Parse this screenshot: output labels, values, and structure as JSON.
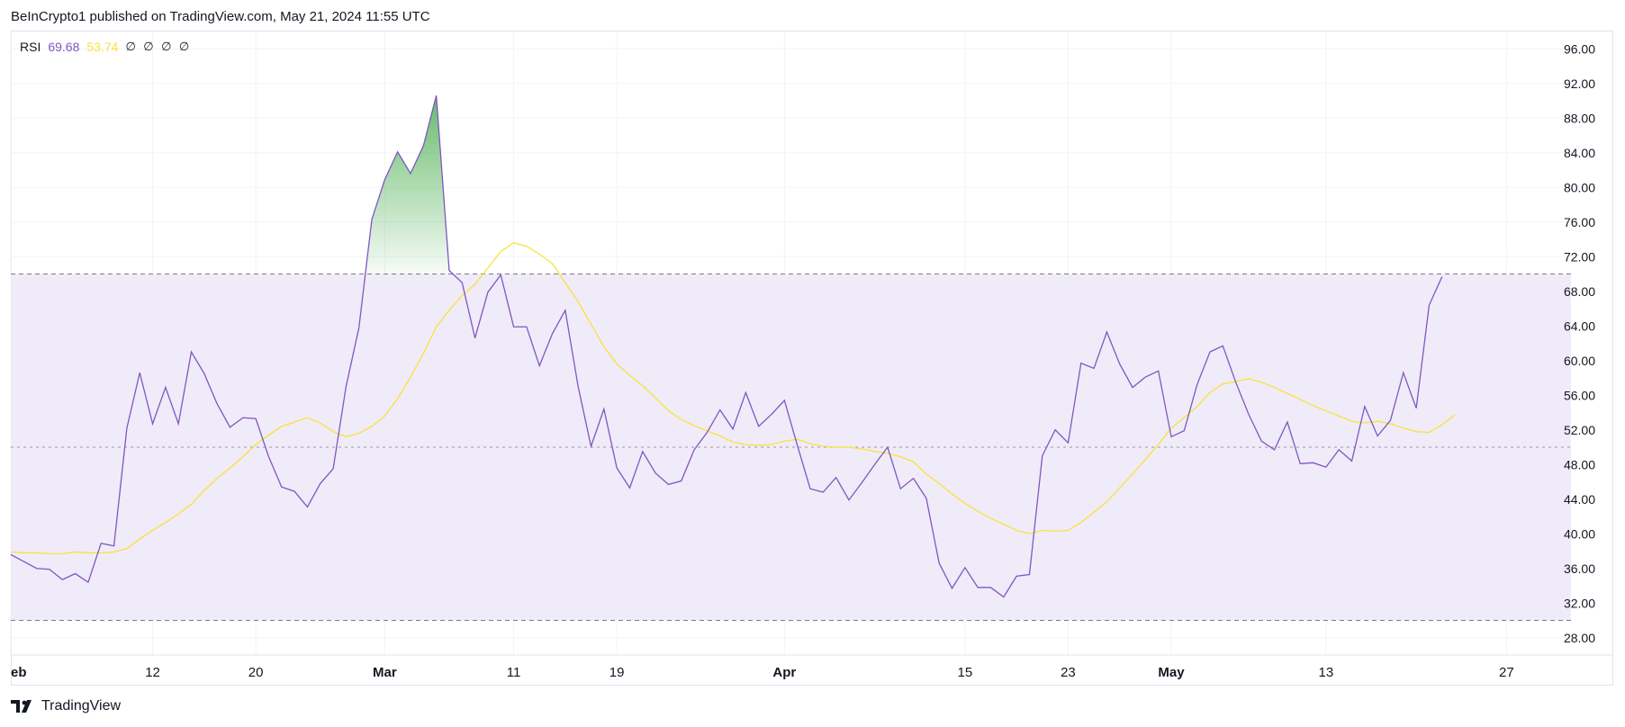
{
  "header": {
    "publisher_line": "BeInCrypto1 published on TradingView.com, May 21, 2024 11:55 UTC"
  },
  "legend": {
    "name": "RSI",
    "rsi_value": "69.68",
    "ma_value": "53.74",
    "na_values": [
      "∅",
      "∅",
      "∅",
      "∅"
    ]
  },
  "footer": {
    "brand": "TradingView",
    "logo_icon": "tradingview-logo-icon"
  },
  "colors": {
    "rsi": "#7e57c2",
    "ma": "#f9e23c",
    "band": "#f0ebf8",
    "overbought_fill": "#4caf50"
  },
  "chart_data": {
    "type": "line",
    "ylim": [
      26,
      98
    ],
    "y_ticks": [
      "96.00",
      "92.00",
      "88.00",
      "84.00",
      "80.00",
      "76.00",
      "72.00",
      "68.00",
      "64.00",
      "60.00",
      "56.00",
      "52.00",
      "48.00",
      "44.00",
      "40.00",
      "36.00",
      "32.00",
      "28.00"
    ],
    "y_tick_values": [
      96,
      92,
      88,
      84,
      80,
      76,
      72,
      68,
      64,
      60,
      56,
      52,
      48,
      44,
      40,
      36,
      32,
      28
    ],
    "x_ticks": [
      {
        "label": "eb",
        "bold": true,
        "idx": 0
      },
      {
        "label": "12",
        "bold": false,
        "idx": 11
      },
      {
        "label": "20",
        "bold": false,
        "idx": 19
      },
      {
        "label": "Mar",
        "bold": true,
        "idx": 29
      },
      {
        "label": "11",
        "bold": false,
        "idx": 39
      },
      {
        "label": "19",
        "bold": false,
        "idx": 47
      },
      {
        "label": "Apr",
        "bold": true,
        "idx": 60
      },
      {
        "label": "15",
        "bold": false,
        "idx": 74
      },
      {
        "label": "23",
        "bold": false,
        "idx": 82
      },
      {
        "label": "May",
        "bold": true,
        "idx": 90
      },
      {
        "label": "13",
        "bold": false,
        "idx": 102
      },
      {
        "label": "27",
        "bold": false,
        "idx": 116
      }
    ],
    "x_index_max": 121,
    "bands": {
      "upper": 70,
      "middle": 50,
      "lower": 30
    },
    "series": [
      {
        "values": [
          37.6,
          36.8,
          36,
          35.9,
          34.7,
          35.4,
          34.4,
          38.9,
          38.6,
          52.2,
          58.6,
          52.7,
          56.9,
          52.7,
          61,
          58.5,
          55,
          52.3,
          53.4,
          53.3,
          48.9,
          45.4,
          44.9,
          43.1,
          45.8,
          47.5,
          57,
          63.8,
          76.3,
          80.9,
          84.1,
          81.6,
          84.8,
          90.6,
          70.4,
          69,
          62.6,
          67.9,
          69.9,
          63.9,
          63.9,
          59.4,
          63.1,
          65.8,
          57,
          50.1,
          54.4,
          47.6,
          45.3,
          49.5,
          47,
          45.7,
          46.1,
          49.7,
          51.7,
          54.3,
          52.1,
          56.3,
          52.4,
          53.8,
          55.4,
          50.2,
          45.2,
          44.8,
          46.5,
          43.9,
          45.9,
          48,
          50,
          45.2,
          46.4,
          44.1,
          36.6,
          33.7,
          36.1,
          33.8,
          33.8,
          32.7,
          35.1,
          35.3,
          49,
          52,
          50.5,
          59.7,
          59.1,
          63.3,
          59.6,
          56.9,
          58.1,
          58.8,
          51.2,
          51.9,
          57.2,
          61,
          61.7,
          57.5,
          53.8,
          50.7,
          49.7,
          52.9,
          48.1,
          48.2,
          47.7,
          49.7,
          48.4,
          54.7,
          51.3,
          53.1,
          58.6,
          54.5,
          66.4,
          69.68
        ]
      },
      {
        "values": [
          37.9,
          37.8,
          37.8,
          37.7,
          37.7,
          37.9,
          37.8,
          37.8,
          37.9,
          38.3,
          39.4,
          40.4,
          41.3,
          42.3,
          43.4,
          45,
          46.4,
          47.6,
          48.9,
          50.3,
          51.4,
          52.4,
          52.9,
          53.4,
          52.8,
          51.8,
          51.2,
          51.6,
          52.4,
          53.6,
          55.6,
          58.1,
          60.8,
          63.9,
          65.8,
          67.5,
          68.8,
          70.7,
          72.6,
          73.6,
          73.2,
          72.3,
          71.2,
          69,
          66.8,
          64.2,
          61.6,
          59.6,
          58.3,
          57.1,
          55.7,
          54.2,
          53.2,
          52.5,
          51.9,
          51.3,
          50.6,
          50.3,
          50.2,
          50.3,
          50.7,
          50.9,
          50.4,
          50.1,
          50,
          50,
          49.8,
          49.5,
          49.3,
          48.9,
          48.3,
          46.9,
          45.8,
          44.6,
          43.5,
          42.6,
          41.8,
          41.1,
          40.4,
          40,
          40.4,
          40.3,
          40.4,
          41.3,
          42.5,
          43.7,
          45.3,
          46.9,
          48.6,
          50.3,
          52.2,
          53.4,
          54.7,
          56.3,
          57.3,
          57.6,
          57.9,
          57.5,
          56.9,
          56.2,
          55.5,
          54.8,
          54.2,
          53.6,
          53,
          52.8,
          53,
          52.7,
          52.2,
          51.8,
          51.7,
          52.6,
          53.74
        ]
      }
    ],
    "overbought_segment": [
      27,
      34
    ]
  }
}
